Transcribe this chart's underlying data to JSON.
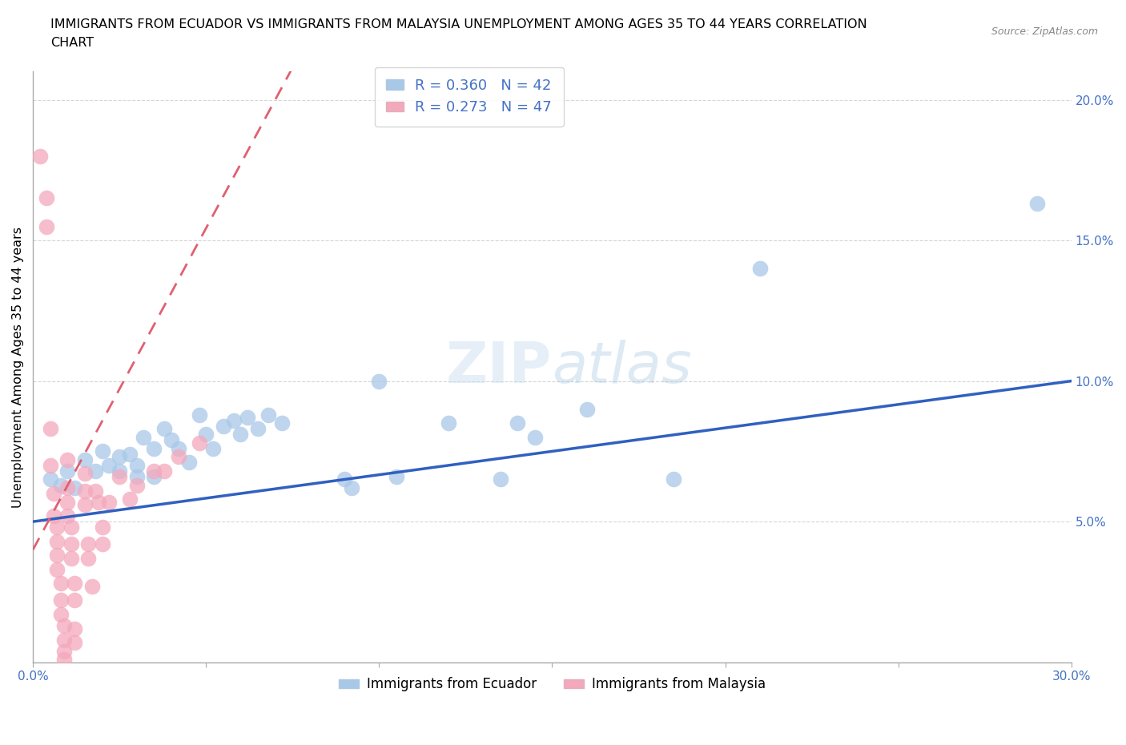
{
  "title_line1": "IMMIGRANTS FROM ECUADOR VS IMMIGRANTS FROM MALAYSIA UNEMPLOYMENT AMONG AGES 35 TO 44 YEARS CORRELATION",
  "title_line2": "CHART",
  "source": "Source: ZipAtlas.com",
  "ylabel": "Unemployment Among Ages 35 to 44 years",
  "xlim": [
    0.0,
    0.3
  ],
  "ylim": [
    0.0,
    0.21
  ],
  "xticks": [
    0.0,
    0.05,
    0.1,
    0.15,
    0.2,
    0.25,
    0.3
  ],
  "yticks": [
    0.0,
    0.05,
    0.1,
    0.15,
    0.2
  ],
  "xtick_labels": [
    "0.0%",
    "",
    "",
    "",
    "",
    "",
    "30.0%"
  ],
  "ytick_labels": [
    "",
    "5.0%",
    "10.0%",
    "15.0%",
    "20.0%"
  ],
  "ecuador_color": "#a8c8e8",
  "malaysia_color": "#f4a8bc",
  "ecuador_edge_color": "#7aafd4",
  "malaysia_edge_color": "#e888a0",
  "ecuador_line_color": "#3060c0",
  "malaysia_line_color": "#e06070",
  "ecuador_R": 0.36,
  "ecuador_N": 42,
  "malaysia_R": 0.273,
  "malaysia_N": 47,
  "legend_label_ecuador": "Immigrants from Ecuador",
  "legend_label_malaysia": "Immigrants from Malaysia",
  "ecuador_scatter": [
    [
      0.005,
      0.065
    ],
    [
      0.008,
      0.063
    ],
    [
      0.01,
      0.068
    ],
    [
      0.012,
      0.062
    ],
    [
      0.015,
      0.072
    ],
    [
      0.018,
      0.068
    ],
    [
      0.02,
      0.075
    ],
    [
      0.022,
      0.07
    ],
    [
      0.025,
      0.073
    ],
    [
      0.025,
      0.068
    ],
    [
      0.028,
      0.074
    ],
    [
      0.03,
      0.07
    ],
    [
      0.03,
      0.066
    ],
    [
      0.032,
      0.08
    ],
    [
      0.035,
      0.076
    ],
    [
      0.035,
      0.066
    ],
    [
      0.038,
      0.083
    ],
    [
      0.04,
      0.079
    ],
    [
      0.042,
      0.076
    ],
    [
      0.045,
      0.071
    ],
    [
      0.048,
      0.088
    ],
    [
      0.05,
      0.081
    ],
    [
      0.052,
      0.076
    ],
    [
      0.055,
      0.084
    ],
    [
      0.058,
      0.086
    ],
    [
      0.06,
      0.081
    ],
    [
      0.062,
      0.087
    ],
    [
      0.065,
      0.083
    ],
    [
      0.068,
      0.088
    ],
    [
      0.072,
      0.085
    ],
    [
      0.09,
      0.065
    ],
    [
      0.092,
      0.062
    ],
    [
      0.1,
      0.1
    ],
    [
      0.105,
      0.066
    ],
    [
      0.12,
      0.085
    ],
    [
      0.135,
      0.065
    ],
    [
      0.14,
      0.085
    ],
    [
      0.145,
      0.08
    ],
    [
      0.16,
      0.09
    ],
    [
      0.185,
      0.065
    ],
    [
      0.21,
      0.14
    ],
    [
      0.29,
      0.163
    ]
  ],
  "malaysia_scatter": [
    [
      0.002,
      0.18
    ],
    [
      0.004,
      0.165
    ],
    [
      0.004,
      0.155
    ],
    [
      0.005,
      0.083
    ],
    [
      0.005,
      0.07
    ],
    [
      0.006,
      0.06
    ],
    [
      0.006,
      0.052
    ],
    [
      0.007,
      0.048
    ],
    [
      0.007,
      0.043
    ],
    [
      0.007,
      0.038
    ],
    [
      0.007,
      0.033
    ],
    [
      0.008,
      0.028
    ],
    [
      0.008,
      0.022
    ],
    [
      0.008,
      0.017
    ],
    [
      0.009,
      0.013
    ],
    [
      0.009,
      0.008
    ],
    [
      0.009,
      0.004
    ],
    [
      0.009,
      0.001
    ],
    [
      0.01,
      0.072
    ],
    [
      0.01,
      0.062
    ],
    [
      0.01,
      0.057
    ],
    [
      0.01,
      0.052
    ],
    [
      0.011,
      0.048
    ],
    [
      0.011,
      0.042
    ],
    [
      0.011,
      0.037
    ],
    [
      0.012,
      0.028
    ],
    [
      0.012,
      0.022
    ],
    [
      0.012,
      0.012
    ],
    [
      0.012,
      0.007
    ],
    [
      0.015,
      0.067
    ],
    [
      0.015,
      0.061
    ],
    [
      0.015,
      0.056
    ],
    [
      0.016,
      0.042
    ],
    [
      0.016,
      0.037
    ],
    [
      0.017,
      0.027
    ],
    [
      0.018,
      0.061
    ],
    [
      0.019,
      0.057
    ],
    [
      0.02,
      0.048
    ],
    [
      0.02,
      0.042
    ],
    [
      0.022,
      0.057
    ],
    [
      0.025,
      0.066
    ],
    [
      0.028,
      0.058
    ],
    [
      0.03,
      0.063
    ],
    [
      0.035,
      0.068
    ],
    [
      0.038,
      0.068
    ],
    [
      0.042,
      0.073
    ],
    [
      0.048,
      0.078
    ]
  ],
  "watermark_text": "ZIPatlas",
  "watermark_color": "#c8ddf0",
  "background_color": "#ffffff"
}
